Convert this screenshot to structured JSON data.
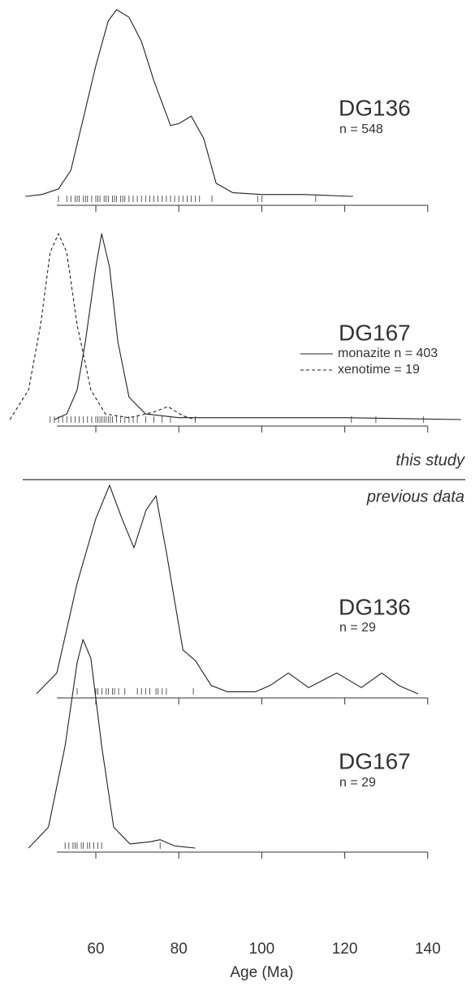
{
  "chart_data": [
    {
      "type": "line",
      "title": "DG136",
      "subtitle": "n = 548",
      "x": [
        43,
        47,
        51,
        54,
        57,
        60,
        63,
        65,
        68,
        71,
        74,
        78,
        80,
        83,
        86,
        89,
        93,
        100,
        110,
        122
      ],
      "series": [
        {
          "color": "#222222",
          "linestyle": "solid",
          "values": [
            0,
            1,
            4,
            14,
            42,
            70,
            94,
            100,
            96,
            83,
            62,
            38,
            39,
            43,
            31,
            7,
            2,
            1,
            1,
            0
          ]
        }
      ],
      "ylim": [
        0,
        100
      ],
      "rug": [
        51,
        53,
        54,
        55,
        55.5,
        56,
        57,
        57.5,
        58,
        59,
        60,
        60.5,
        61,
        62,
        62.5,
        63,
        64,
        64.5,
        65,
        66,
        66.5,
        67,
        68,
        69,
        70,
        71,
        72,
        73,
        74,
        75,
        76,
        77,
        78,
        79,
        80,
        81,
        82,
        83,
        84,
        85,
        88,
        99,
        100,
        113
      ]
    },
    {
      "type": "line",
      "title": "DG167",
      "series": [
        {
          "name": "monazite n = 403",
          "color": "#222222",
          "linestyle": "solid",
          "x": [
            50,
            53,
            55.5,
            57.5,
            60,
            61.4,
            63.3,
            65.3,
            68,
            72,
            80,
            95,
            120,
            148
          ],
          "values": [
            0,
            3,
            16,
            42,
            82,
            100,
            82,
            42,
            12,
            3,
            1,
            1,
            1,
            0
          ]
        },
        {
          "name": "xenotime = 19",
          "color": "#222222",
          "linestyle": "dashed",
          "x": [
            39.3,
            43.8,
            46.7,
            49,
            51,
            53,
            55.5,
            58.8,
            62.3,
            68,
            74,
            77.4,
            81,
            84
          ],
          "values": [
            0,
            16,
            51,
            90,
            100,
            90,
            51,
            16,
            3,
            1,
            4,
            7,
            2,
            0
          ]
        }
      ],
      "ylim": [
        0,
        100
      ],
      "rug": [
        49,
        50,
        51,
        52,
        53,
        54,
        55,
        56,
        57,
        58,
        59,
        60,
        60.5,
        61,
        61.5,
        62,
        62.5,
        63,
        63.5,
        64,
        65,
        66,
        67,
        68,
        69,
        70,
        72,
        74,
        76,
        78,
        84,
        121.6,
        127.5,
        139
      ]
    },
    {
      "type": "line",
      "title": "DG136",
      "subtitle": "n = 29",
      "x": [
        45.7,
        50.6,
        55.5,
        60,
        63.3,
        66.3,
        69.2,
        72.1,
        74.5,
        77,
        81,
        84,
        87.8,
        91.7,
        98.5,
        102,
        106.4,
        111.3,
        118.1,
        124,
        128.9,
        133,
        137.7
      ],
      "series": [
        {
          "color": "#222222",
          "linestyle": "solid",
          "values": [
            0,
            10,
            53,
            84,
            100,
            84,
            70,
            88,
            95,
            68,
            21,
            16,
            4,
            1,
            1,
            4,
            10,
            3,
            10,
            3,
            10,
            4,
            0
          ]
        }
      ],
      "ylim": [
        0,
        100
      ],
      "rug": [
        55.5,
        60,
        60.5,
        61.5,
        62.5,
        63,
        64,
        64.5,
        65.5,
        67,
        70,
        71,
        72,
        73,
        74.5,
        75,
        76,
        77,
        83.5
      ]
    },
    {
      "type": "line",
      "title": "DG167",
      "subtitle": "n = 29",
      "xlabel": "Age (Ma)",
      "x": [
        43.8,
        48.6,
        52.6,
        55.5,
        56.9,
        58.8,
        61.4,
        64.3,
        68.2,
        73.1,
        75.5,
        79,
        84
      ],
      "series": [
        {
          "color": "#222222",
          "linestyle": "solid",
          "values": [
            0,
            10,
            49,
            89,
            100,
            91,
            49,
            10,
            2,
            3,
            4,
            1,
            0
          ]
        }
      ],
      "ylim": [
        0,
        100
      ],
      "xlim": [
        38,
        150
      ],
      "xticks": [
        60,
        80,
        100,
        120,
        140
      ],
      "rug": [
        52.6,
        53.5,
        54.5,
        55,
        55.5,
        56.5,
        57,
        58,
        58.5,
        59.5,
        60.5,
        61.4,
        75.5
      ]
    }
  ],
  "annotations": [
    "this study",
    "previous data"
  ]
}
